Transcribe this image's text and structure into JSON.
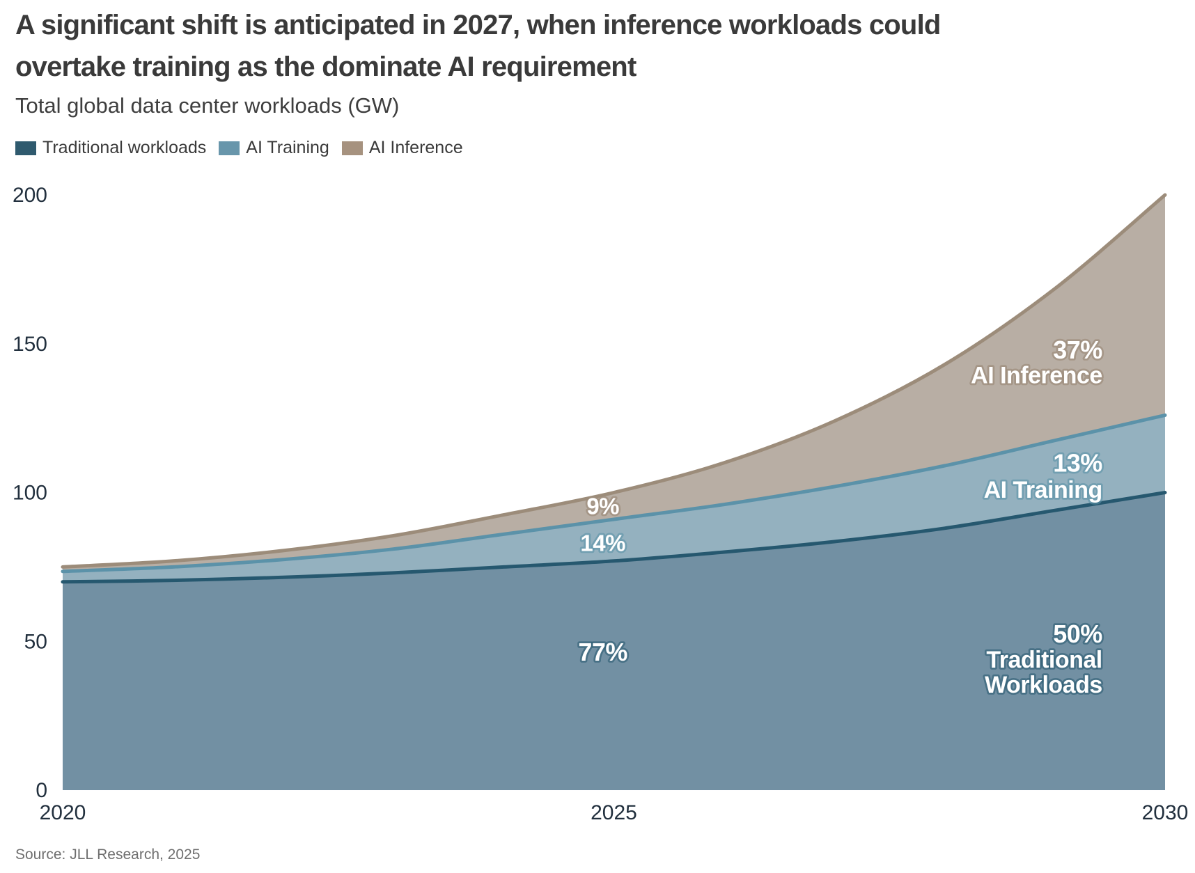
{
  "header": {
    "title_lines": [
      "A significant shift is anticipated in 2027, when inference workloads could",
      "overtake training as the dominate AI requirement"
    ],
    "subtitle": "Total global data center workloads (GW)"
  },
  "legend": {
    "items": [
      {
        "label": "Traditional workloads",
        "color": "#2f5a6e"
      },
      {
        "label": "AI Training",
        "color": "#6896ab"
      },
      {
        "label": "AI Inference",
        "color": "#a6927f"
      }
    ]
  },
  "chart_data": {
    "type": "area",
    "stacked": true,
    "title": "Total global data center workloads (GW)",
    "xlabel": "",
    "ylabel": "GW",
    "x": [
      2020,
      2021,
      2022,
      2023,
      2024,
      2025,
      2026,
      2027,
      2028,
      2029,
      2030
    ],
    "series": [
      {
        "key": "traditional",
        "name": "Traditional workloads",
        "fill": "#7290a3",
        "stroke": "#26586f",
        "halo": "rgba(38,88,111,0.55)",
        "values": [
          70,
          70.5,
          71.5,
          73,
          75,
          77,
          80,
          83.5,
          88,
          94,
          100
        ]
      },
      {
        "key": "training",
        "name": "AI Training",
        "fill": "#94b1bf",
        "stroke": "#5b92a9",
        "halo": "rgba(91,146,169,0.6)",
        "values": [
          3.5,
          4.5,
          6,
          8,
          11,
          14,
          16,
          18.5,
          21,
          23.5,
          26
        ]
      },
      {
        "key": "inference",
        "name": "AI Inference",
        "fill": "#b8aea4",
        "stroke": "#9c8c7a",
        "halo": "rgba(156,140,122,0.7)",
        "values": [
          1.5,
          2,
          3,
          4.5,
          6.5,
          9,
          14,
          22,
          34,
          51,
          74
        ]
      }
    ],
    "share_labels": {
      "2025": {
        "traditional": "77%",
        "training": "14%",
        "inference": "9%"
      },
      "2030": {
        "traditional": "50%",
        "training": "13%",
        "inference": "37%"
      }
    },
    "ylim": [
      0,
      200
    ],
    "yticks": [
      0,
      50,
      100,
      150,
      200
    ],
    "xticks": [
      2020,
      2025,
      2030
    ],
    "grid": false,
    "legend_position": "top-left",
    "annotations": [
      {
        "text": "9%",
        "year": 2024.9,
        "gw": 95.5,
        "anchor": "middle",
        "series": "inference",
        "size": 33
      },
      {
        "text": "14%",
        "year": 2024.9,
        "gw": 83,
        "anchor": "middle",
        "series": "training",
        "size": 33
      },
      {
        "text": "77%",
        "year": 2024.9,
        "gw": 46.5,
        "anchor": "middle",
        "series": "traditional",
        "size": 36
      },
      {
        "text": "37%",
        "year": 2029.43,
        "gw": 148,
        "anchor": "end",
        "series": "inference",
        "size": 36
      },
      {
        "text": "AI Inference",
        "year": 2029.43,
        "gw": 139.5,
        "anchor": "end",
        "series": "inference",
        "size": 34
      },
      {
        "text": "13%",
        "year": 2029.43,
        "gw": 110,
        "anchor": "end",
        "series": "training",
        "size": 36
      },
      {
        "text": "AI Training",
        "year": 2029.43,
        "gw": 101,
        "anchor": "end",
        "series": "training",
        "size": 34
      },
      {
        "text": "50%",
        "year": 2029.43,
        "gw": 52.5,
        "anchor": "end",
        "series": "traditional",
        "size": 36
      },
      {
        "text": "Traditional",
        "year": 2029.43,
        "gw": 44,
        "anchor": "end",
        "series": "traditional",
        "size": 34
      },
      {
        "text": "Workloads",
        "year": 2029.43,
        "gw": 35.5,
        "anchor": "end",
        "series": "traditional",
        "size": 34
      }
    ]
  },
  "source": "Source: JLL Research, 2025",
  "colors": {
    "background": "#ffffff",
    "title_text": "#3a3a3a",
    "subtitle_text": "#3e3e3e",
    "axis_text": "#22303e",
    "source_text": "#6e6e6e"
  }
}
